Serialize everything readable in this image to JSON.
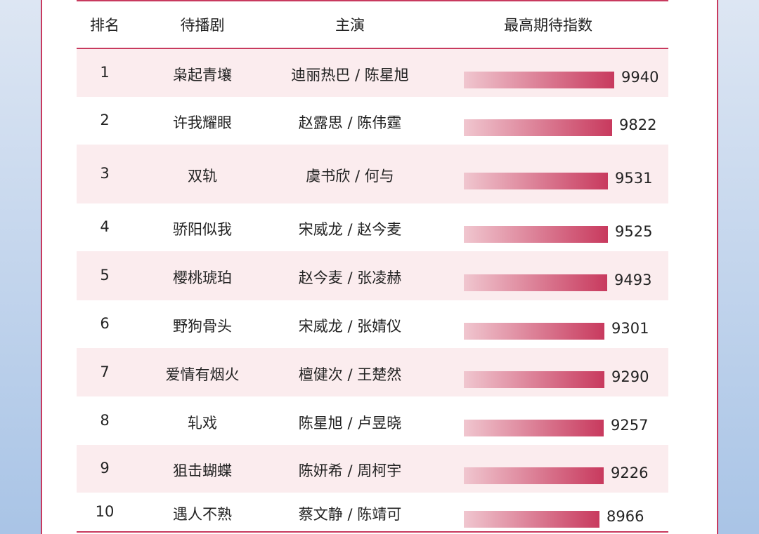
{
  "header": {
    "rank": "排名",
    "drama": "待播剧",
    "cast": "主演",
    "index": "最高期待指数"
  },
  "chart_data": {
    "type": "bar",
    "orientation": "horizontal",
    "xlabel": "最高期待指数",
    "categories": [
      "枭起青壤",
      "许我耀眼",
      "双轨",
      "骄阳似我",
      "樱桃琥珀",
      "野狗骨头",
      "爱情有烟火",
      "轧戏",
      "狙击蝴蝶",
      "遇人不熟"
    ],
    "values": [
      9940,
      9822,
      9531,
      9525,
      9493,
      9301,
      9290,
      9257,
      9226,
      8966
    ]
  },
  "rows": [
    {
      "rank": "1",
      "drama": "枭起青壤",
      "cast": "迪丽热巴 / 陈星旭",
      "value": "9940"
    },
    {
      "rank": "2",
      "drama": "许我耀眼",
      "cast": "赵露思 / 陈伟霆",
      "value": "9822"
    },
    {
      "rank": "3",
      "drama": "双轨",
      "cast": "虞书欣 / 何与",
      "value": "9531"
    },
    {
      "rank": "4",
      "drama": "骄阳似我",
      "cast": "宋威龙 / 赵今麦",
      "value": "9525"
    },
    {
      "rank": "5",
      "drama": "樱桃琥珀",
      "cast": "赵今麦 / 张凌赫",
      "value": "9493"
    },
    {
      "rank": "6",
      "drama": "野狗骨头",
      "cast": "宋威龙 / 张婧仪",
      "value": "9301"
    },
    {
      "rank": "7",
      "drama": "爱情有烟火",
      "cast": "檀健次 / 王楚然",
      "value": "9290"
    },
    {
      "rank": "8",
      "drama": "轧戏",
      "cast": "陈星旭 / 卢昱晓",
      "value": "9257"
    },
    {
      "rank": "9",
      "drama": "狙击蝴蝶",
      "cast": "陈妍希 / 周柯宇",
      "value": "9226"
    },
    {
      "rank": "10",
      "drama": "遇人不熟",
      "cast": "蔡文静 / 陈靖可",
      "value": "8966"
    }
  ],
  "colors": {
    "accent": "#c83a5e",
    "bar_light": "#f0c6cf",
    "row_shade": "#fbecee",
    "background": "#a9c4e6"
  }
}
